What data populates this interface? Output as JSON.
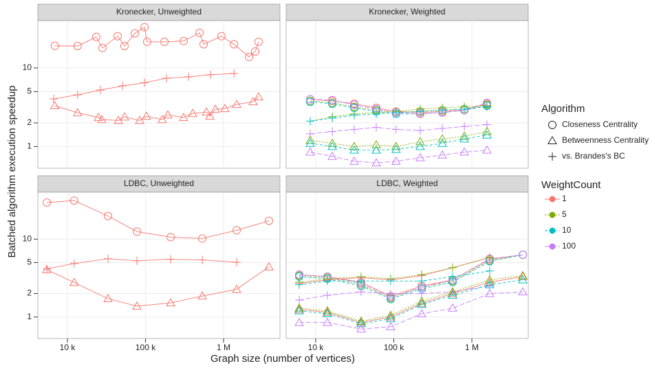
{
  "axis_labels": {
    "x": "Graph size (number of vertices)",
    "y": "Batched algorithm execution speedup"
  },
  "legend": {
    "shape_title": "Algorithm",
    "shapes": [
      {
        "name": "Closeness Centrality",
        "marker": "circle"
      },
      {
        "name": "Betweenness Centrality",
        "marker": "triangle"
      },
      {
        "name": "vs. Brandes's BC",
        "marker": "plus"
      }
    ],
    "color_title": "WeightCount",
    "colors": [
      {
        "name": "1",
        "color": "#F8766D",
        "dash": "none"
      },
      {
        "name": "5",
        "color": "#7CAE00",
        "dash": "2,2"
      },
      {
        "name": "10",
        "color": "#00BFC4",
        "dash": "4,3"
      },
      {
        "name": "100",
        "color": "#C77CFF",
        "dash": "7,3"
      }
    ]
  },
  "chart_data": [
    {
      "type": "line",
      "title": "Kronecker, Unweighted",
      "log_x": true,
      "log_y": true,
      "grid": true,
      "xlim": [
        4180,
        5270000
      ],
      "ylim": [
        0.53,
        40
      ],
      "xticks": [
        {
          "value": 10000,
          "label": "10 k"
        },
        {
          "value": 100000,
          "label": "100 k"
        },
        {
          "value": 1000000,
          "label": "1 M"
        }
      ],
      "yticks": [
        1,
        2,
        5,
        10
      ],
      "series": [
        {
          "marker": "circle",
          "color": "#F8766D",
          "dash": "none",
          "x": [
            6900,
            13500,
            23400,
            28100,
            44000,
            53800,
            73000,
            97000,
            105000,
            175000,
            308000,
            492000,
            555000,
            940000,
            1360000,
            2120000,
            2540000,
            2810000
          ],
          "values": [
            19.1,
            19,
            24.8,
            18,
            25.3,
            19,
            27.5,
            33,
            21.5,
            21.5,
            22,
            27.9,
            20,
            25.3,
            20,
            13.8,
            16.2,
            21.5
          ]
        },
        {
          "marker": "triangle",
          "color": "#F8766D",
          "dash": "none",
          "x": [
            6900,
            13500,
            24900,
            27600,
            44900,
            53800,
            84100,
            103000,
            164000,
            193000,
            308000,
            402000,
            603000,
            667000,
            783000,
            1040000,
            1470000,
            2390000,
            2810000
          ],
          "values": [
            3.3,
            2.69,
            2.34,
            2.2,
            2.15,
            2.38,
            2.15,
            2.43,
            2.2,
            2.53,
            2.34,
            2.64,
            2.74,
            2.43,
            2.98,
            3.04,
            3.43,
            3.72,
            4.28
          ]
        },
        {
          "marker": "plus",
          "color": "#F8766D",
          "dash": "none",
          "x": [
            6670,
            13500,
            26500,
            50700,
            97000,
            186000,
            356000,
            680000,
            1360000
          ],
          "values": [
            4.03,
            4.55,
            5.24,
            5.9,
            6.5,
            7.4,
            7.7,
            8.2,
            8.5
          ]
        }
      ]
    },
    {
      "type": "line",
      "title": "Kronecker, Weighted",
      "log_x": true,
      "log_y": true,
      "grid": true,
      "xlim": [
        4180,
        5270000
      ],
      "ylim": [
        0.53,
        40
      ],
      "xticks": [
        {
          "value": 10000,
          "label": "10 k"
        },
        {
          "value": 100000,
          "label": "100 k"
        },
        {
          "value": 1000000,
          "label": "1 M"
        }
      ],
      "yticks": [
        1,
        2,
        5,
        10
      ],
      "x": [
        8500,
        16300,
        31100,
        59600,
        107000,
        218000,
        418000,
        800000,
        1560000
      ],
      "series": [
        {
          "marker": "circle",
          "color": "#F8766D",
          "dash": "none",
          "values": [
            4.0,
            3.8,
            3.5,
            3.1,
            2.8,
            2.7,
            2.8,
            2.9,
            3.5
          ]
        },
        {
          "marker": "circle",
          "color": "#7CAE00",
          "dash": "2,2",
          "values": [
            3.8,
            3.6,
            3.2,
            2.9,
            2.7,
            2.8,
            2.9,
            3.0,
            3.4
          ]
        },
        {
          "marker": "circle",
          "color": "#00BFC4",
          "dash": "4,3",
          "values": [
            3.7,
            3.5,
            3.1,
            2.8,
            2.6,
            2.6,
            2.7,
            2.9,
            3.3
          ]
        },
        {
          "marker": "circle",
          "color": "#C77CFF",
          "dash": "7,3",
          "values": [
            4.0,
            3.9,
            3.4,
            3.0,
            2.7,
            2.6,
            2.7,
            2.9,
            3.6
          ]
        },
        {
          "marker": "plus",
          "color": "#7CAE00",
          "dash": "2,2",
          "values": [
            2.1,
            2.4,
            2.6,
            2.7,
            2.8,
            3.0,
            3.1,
            3.2,
            3.3
          ]
        },
        {
          "marker": "plus",
          "color": "#00BFC4",
          "dash": "4,3",
          "values": [
            2.1,
            2.3,
            2.5,
            2.6,
            2.7,
            2.8,
            2.9,
            3.0,
            3.2
          ]
        },
        {
          "marker": "plus",
          "color": "#C77CFF",
          "dash": "7,3",
          "values": [
            1.45,
            1.55,
            1.65,
            1.75,
            1.65,
            1.6,
            1.7,
            1.8,
            1.9
          ]
        },
        {
          "marker": "triangle",
          "color": "#7CAE00",
          "dash": "2,2",
          "values": [
            1.2,
            1.1,
            1.0,
            1.05,
            1.0,
            1.15,
            1.25,
            1.35,
            1.55
          ]
        },
        {
          "marker": "triangle",
          "color": "#00BFC4",
          "dash": "4,3",
          "values": [
            1.1,
            1.0,
            0.9,
            0.9,
            0.92,
            1.0,
            1.1,
            1.25,
            1.4
          ]
        },
        {
          "marker": "triangle",
          "color": "#C77CFF",
          "dash": "7,3",
          "values": [
            0.85,
            0.75,
            0.65,
            0.62,
            0.65,
            0.72,
            0.78,
            0.85,
            0.9
          ]
        }
      ]
    },
    {
      "type": "line",
      "title": "LDBC, Unweighted",
      "log_x": true,
      "log_y": true,
      "grid": true,
      "xlim": [
        4180,
        5270000
      ],
      "ylim": [
        0.53,
        40
      ],
      "xticks": [
        {
          "value": 10000,
          "label": "10 k"
        },
        {
          "value": 100000,
          "label": "100 k"
        },
        {
          "value": 1000000,
          "label": "1 M"
        }
      ],
      "yticks": [
        1,
        2,
        5,
        10
      ],
      "x": [
        5450,
        12200,
        33100,
        77700,
        210000,
        533000,
        1470000,
        3810000
      ],
      "series": [
        {
          "marker": "circle",
          "color": "#F8766D",
          "dash": "none",
          "values": [
            29.5,
            31.3,
            19.8,
            12.5,
            10.6,
            10.2,
            13,
            17.2
          ]
        },
        {
          "marker": "plus",
          "color": "#F8766D",
          "dash": "none",
          "values": [
            4.15,
            4.86,
            5.6,
            5.27,
            5.5,
            5.4,
            5.06,
            null
          ]
        },
        {
          "marker": "triangle",
          "color": "#F8766D",
          "dash": "none",
          "values": [
            4.05,
            2.78,
            1.72,
            1.38,
            1.52,
            1.86,
            2.27,
            4.4
          ]
        }
      ]
    },
    {
      "type": "line",
      "title": "LDBC, Weighted",
      "log_x": true,
      "log_y": true,
      "grid": true,
      "xlim": [
        4180,
        5270000
      ],
      "ylim": [
        0.53,
        40
      ],
      "xticks": [
        {
          "value": 10000,
          "label": "10 k"
        },
        {
          "value": 100000,
          "label": "100 k"
        },
        {
          "value": 1000000,
          "label": "1 M"
        }
      ],
      "yticks": [
        1,
        2,
        5,
        10
      ],
      "x": [
        6150,
        14100,
        38100,
        91200,
        228000,
        566000,
        1690000,
        4490000
      ],
      "series": [
        {
          "marker": "circle",
          "color": "#F8766D",
          "dash": "none",
          "values": [
            3.5,
            3.3,
            2.8,
            1.85,
            2.5,
            3.0,
            5.5,
            6.3
          ]
        },
        {
          "marker": "circle",
          "color": "#7CAE00",
          "dash": "2,2",
          "values": [
            3.4,
            3.2,
            2.6,
            1.75,
            2.4,
            2.9,
            5.3,
            6.3
          ]
        },
        {
          "marker": "circle",
          "color": "#00BFC4",
          "dash": "4,3",
          "values": [
            3.3,
            3.1,
            2.5,
            1.7,
            2.3,
            2.8,
            5.2,
            6.3
          ]
        },
        {
          "marker": "circle",
          "color": "#C77CFF",
          "dash": "7,3",
          "values": [
            3.5,
            3.3,
            2.7,
            1.8,
            2.4,
            3.0,
            5.6,
            6.3
          ]
        },
        {
          "marker": "plus",
          "color": "#F8766D",
          "dash": "none",
          "values": [
            2.7,
            3.0,
            3.2,
            3.0,
            3.4,
            4.3,
            5.8,
            null
          ]
        },
        {
          "marker": "plus",
          "color": "#7CAE00",
          "dash": "2,2",
          "values": [
            2.8,
            3.1,
            3.3,
            3.1,
            3.5,
            4.3,
            5.8,
            null
          ]
        },
        {
          "marker": "plus",
          "color": "#00BFC4",
          "dash": "4,3",
          "values": [
            2.6,
            2.9,
            2.9,
            2.9,
            2.9,
            3.3,
            3.9,
            null
          ]
        },
        {
          "marker": "plus",
          "color": "#C77CFF",
          "dash": "7,3",
          "values": [
            1.65,
            1.9,
            2.1,
            2.0,
            2.0,
            2.1,
            2.5,
            null
          ]
        },
        {
          "marker": "triangle",
          "color": "#F8766D",
          "dash": "none",
          "values": [
            1.25,
            1.15,
            0.85,
            1.0,
            1.5,
            2.0,
            2.8,
            3.3
          ]
        },
        {
          "marker": "triangle",
          "color": "#7CAE00",
          "dash": "2,2",
          "values": [
            1.3,
            1.2,
            0.88,
            1.05,
            1.6,
            2.1,
            3.0,
            3.4
          ]
        },
        {
          "marker": "triangle",
          "color": "#00BFC4",
          "dash": "4,3",
          "values": [
            1.2,
            1.1,
            0.82,
            0.95,
            1.45,
            1.9,
            2.6,
            3.0
          ]
        },
        {
          "marker": "triangle",
          "color": "#C77CFF",
          "dash": "7,3",
          "values": [
            0.85,
            0.85,
            0.7,
            0.75,
            1.1,
            1.3,
            2.0,
            2.1
          ]
        }
      ]
    }
  ]
}
